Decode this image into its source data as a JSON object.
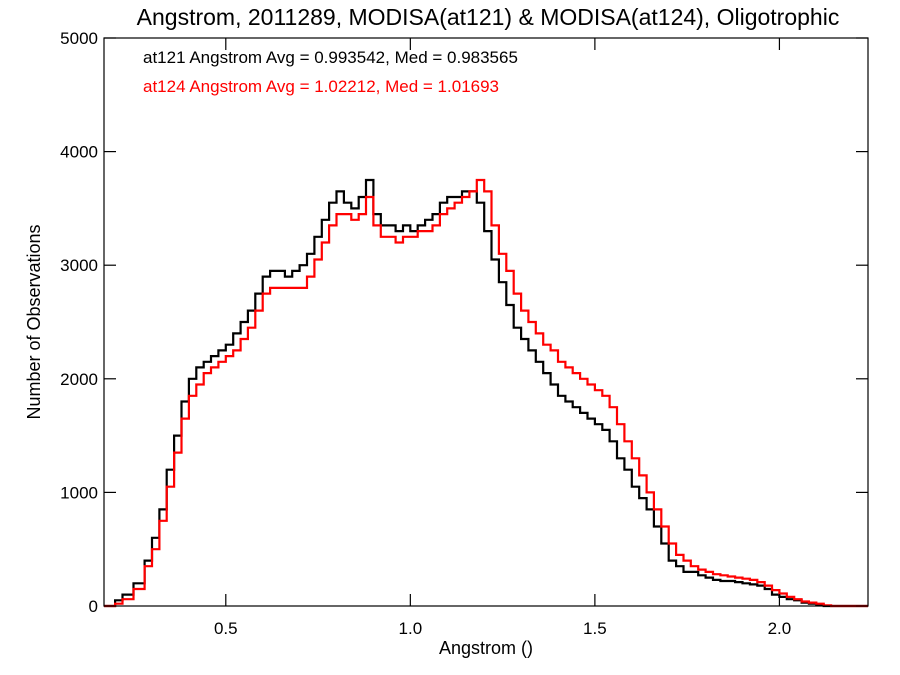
{
  "chart_data": {
    "type": "line",
    "subtype": "step-histogram",
    "title": "Angstrom, 2011289, MODISA(at121) & MODISA(at124), Oligotrophic",
    "xlabel": "Angstrom ()",
    "ylabel": "Number of Observations",
    "xlim": [
      0.17,
      2.24
    ],
    "ylim": [
      0,
      5000
    ],
    "x_ticks": [
      0.5,
      1.0,
      1.5,
      2.0
    ],
    "x_tick_labels": [
      "0.5",
      "1.0",
      "1.5",
      "2.0"
    ],
    "y_ticks": [
      0,
      1000,
      2000,
      3000,
      4000,
      5000
    ],
    "y_tick_labels": [
      "0",
      "1000",
      "2000",
      "3000",
      "4000",
      "5000"
    ],
    "annotations": [
      {
        "text": "at121 Angstrom Avg = 0.993542, Med = 0.983565",
        "color": "#000000"
      },
      {
        "text": "at124 Angstrom Avg = 1.02212, Med = 1.01693",
        "color": "#ff0000"
      }
    ],
    "series": [
      {
        "color": "#000000",
        "x": [
          0.17,
          0.2,
          0.22,
          0.25,
          0.28,
          0.3,
          0.32,
          0.34,
          0.36,
          0.38,
          0.4,
          0.42,
          0.44,
          0.46,
          0.48,
          0.5,
          0.52,
          0.54,
          0.56,
          0.58,
          0.6,
          0.62,
          0.64,
          0.66,
          0.68,
          0.7,
          0.72,
          0.74,
          0.76,
          0.78,
          0.8,
          0.82,
          0.84,
          0.86,
          0.88,
          0.9,
          0.92,
          0.94,
          0.96,
          0.98,
          1.0,
          1.02,
          1.04,
          1.06,
          1.08,
          1.1,
          1.12,
          1.14,
          1.16,
          1.18,
          1.2,
          1.22,
          1.24,
          1.26,
          1.28,
          1.3,
          1.32,
          1.34,
          1.36,
          1.38,
          1.4,
          1.42,
          1.44,
          1.46,
          1.48,
          1.5,
          1.52,
          1.54,
          1.56,
          1.58,
          1.6,
          1.62,
          1.64,
          1.66,
          1.68,
          1.7,
          1.72,
          1.74,
          1.76,
          1.78,
          1.8,
          1.82,
          1.84,
          1.86,
          1.88,
          1.9,
          1.92,
          1.94,
          1.96,
          1.98,
          2.0,
          2.02,
          2.04,
          2.06,
          2.08,
          2.1,
          2.12,
          2.14,
          2.17
        ],
        "y": [
          0,
          50,
          100,
          200,
          400,
          600,
          850,
          1200,
          1500,
          1800,
          2000,
          2100,
          2150,
          2200,
          2250,
          2300,
          2400,
          2500,
          2600,
          2750,
          2900,
          2950,
          2950,
          2900,
          2950,
          3000,
          3100,
          3250,
          3400,
          3550,
          3650,
          3550,
          3500,
          3600,
          3750,
          3450,
          3350,
          3350,
          3300,
          3350,
          3300,
          3350,
          3400,
          3450,
          3550,
          3600,
          3600,
          3650,
          3650,
          3550,
          3300,
          3050,
          2850,
          2650,
          2450,
          2350,
          2250,
          2150,
          2050,
          1950,
          1850,
          1800,
          1750,
          1700,
          1650,
          1600,
          1550,
          1450,
          1300,
          1200,
          1050,
          950,
          850,
          700,
          550,
          400,
          350,
          300,
          300,
          270,
          250,
          230,
          220,
          220,
          210,
          200,
          190,
          180,
          150,
          100,
          80,
          60,
          50,
          30,
          20,
          10,
          0,
          0,
          0
        ],
        "data_name": "series-at121-line"
      },
      {
        "color": "#ff0000",
        "x": [
          0.17,
          0.2,
          0.22,
          0.25,
          0.28,
          0.3,
          0.32,
          0.34,
          0.36,
          0.38,
          0.4,
          0.42,
          0.44,
          0.46,
          0.48,
          0.5,
          0.52,
          0.54,
          0.56,
          0.58,
          0.6,
          0.62,
          0.64,
          0.66,
          0.68,
          0.7,
          0.72,
          0.74,
          0.76,
          0.78,
          0.8,
          0.82,
          0.84,
          0.86,
          0.88,
          0.9,
          0.92,
          0.94,
          0.96,
          0.98,
          1.0,
          1.02,
          1.04,
          1.06,
          1.08,
          1.1,
          1.12,
          1.14,
          1.16,
          1.18,
          1.2,
          1.22,
          1.24,
          1.26,
          1.28,
          1.3,
          1.32,
          1.34,
          1.36,
          1.38,
          1.4,
          1.42,
          1.44,
          1.46,
          1.48,
          1.5,
          1.52,
          1.54,
          1.56,
          1.58,
          1.6,
          1.62,
          1.64,
          1.66,
          1.68,
          1.7,
          1.72,
          1.74,
          1.76,
          1.78,
          1.8,
          1.82,
          1.84,
          1.86,
          1.88,
          1.9,
          1.92,
          1.94,
          1.96,
          1.98,
          2.0,
          2.02,
          2.04,
          2.06,
          2.08,
          2.1,
          2.12,
          2.14,
          2.17
        ],
        "y": [
          0,
          20,
          60,
          150,
          350,
          500,
          750,
          1050,
          1350,
          1650,
          1850,
          1950,
          2050,
          2100,
          2150,
          2200,
          2250,
          2350,
          2450,
          2600,
          2750,
          2800,
          2800,
          2800,
          2800,
          2800,
          2900,
          3050,
          3200,
          3350,
          3450,
          3450,
          3400,
          3450,
          3600,
          3350,
          3250,
          3250,
          3200,
          3250,
          3250,
          3300,
          3300,
          3350,
          3450,
          3500,
          3550,
          3600,
          3650,
          3750,
          3650,
          3350,
          3100,
          2950,
          2750,
          2600,
          2500,
          2400,
          2300,
          2250,
          2150,
          2100,
          2050,
          2000,
          1950,
          1900,
          1850,
          1750,
          1600,
          1450,
          1300,
          1150,
          1000,
          850,
          700,
          550,
          450,
          400,
          350,
          320,
          300,
          280,
          270,
          260,
          250,
          240,
          230,
          210,
          180,
          140,
          110,
          80,
          60,
          40,
          30,
          20,
          5,
          0,
          0
        ],
        "data_name": "series-at124-line"
      }
    ]
  }
}
